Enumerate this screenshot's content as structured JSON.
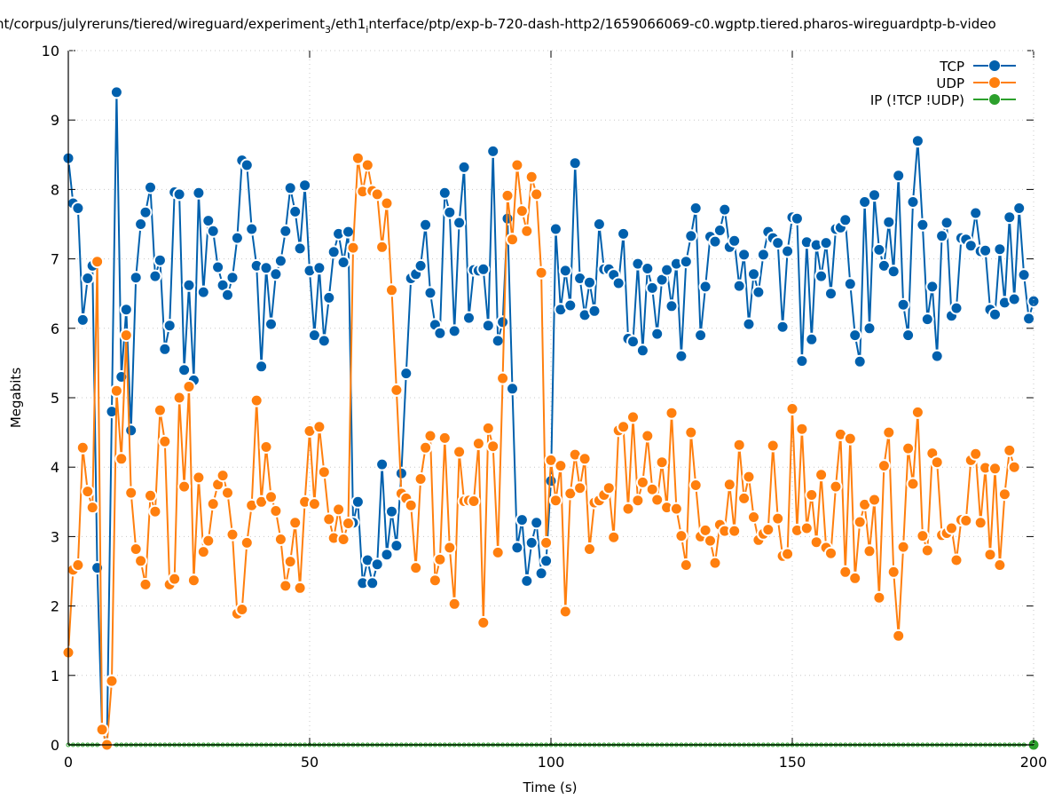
{
  "chart_data": {
    "type": "line",
    "title": "ht/corpus/julyreruns/tiered/wireguard/experiment",
    "title_sub1": "3",
    "title_mid": "/eth1",
    "title_sub2": "i",
    "title_end": "nterface/ptp/exp-b-720-dash-http2/1659066069-c0.wgptp.tiered.pharos-wireguardptp-b-video",
    "xlabel": "Time (s)",
    "ylabel": "Megabits",
    "xlim": [
      0,
      200
    ],
    "ylim": [
      0,
      10
    ],
    "xticks": [
      "0",
      "50",
      "100",
      "150",
      "200"
    ],
    "yticks": [
      "0",
      "1",
      "2",
      "3",
      "4",
      "5",
      "6",
      "7",
      "8",
      "9",
      "10"
    ],
    "grid": true,
    "legend_position": "top-right",
    "series": [
      {
        "name": "TCP",
        "color": "#0060ad",
        "values": [
          8.45,
          7.8,
          7.73,
          6.12,
          6.72,
          6.9,
          2.55,
          0.2,
          0.0,
          4.8,
          9.4,
          5.3,
          6.27,
          4.53,
          6.73,
          7.5,
          7.67,
          8.03,
          6.75,
          6.98,
          5.7,
          6.04,
          7.96,
          7.93,
          5.4,
          6.62,
          5.25,
          7.95,
          6.52,
          7.55,
          7.4,
          6.88,
          6.62,
          6.48,
          6.73,
          7.3,
          8.42,
          8.35,
          7.43,
          6.9,
          5.45,
          6.87,
          6.06,
          6.78,
          6.97,
          7.4,
          8.02,
          7.68,
          7.15,
          8.06,
          6.83,
          5.9,
          6.87,
          5.82,
          6.44,
          7.1,
          7.36,
          6.95,
          7.39,
          3.2,
          3.5,
          2.33,
          2.66,
          2.33,
          2.6,
          4.04,
          2.74,
          3.36,
          2.87,
          3.91,
          5.35,
          6.72,
          6.78,
          6.9,
          7.49,
          6.51,
          6.05,
          5.93,
          7.95,
          7.67,
          5.96,
          7.52,
          8.32,
          6.15,
          6.84,
          6.83,
          6.85,
          6.04,
          8.55,
          5.82,
          6.09,
          7.58,
          5.13,
          2.84,
          3.24,
          2.36,
          2.91,
          3.2,
          2.47,
          2.65,
          3.8,
          7.43,
          6.27,
          6.83,
          6.33,
          8.38,
          6.72,
          6.19,
          6.66,
          6.25,
          7.5,
          6.85,
          6.85,
          6.77,
          6.65,
          7.36,
          5.85,
          5.81,
          6.93,
          5.68,
          6.86,
          6.58,
          5.92,
          6.7,
          6.84,
          6.32,
          6.93,
          5.6,
          6.96,
          7.33,
          7.73,
          5.9,
          6.6,
          7.32,
          7.25,
          7.41,
          7.71,
          7.17,
          7.26,
          6.61,
          7.06,
          6.06,
          6.78,
          6.52,
          7.06,
          7.39,
          7.3,
          7.23,
          6.02,
          7.11,
          7.6,
          7.58,
          5.53,
          7.24,
          5.84,
          7.2,
          6.75,
          7.23,
          6.5,
          7.43,
          7.45,
          7.56,
          6.64,
          5.9,
          5.52,
          7.82,
          6.0,
          7.92,
          7.13,
          6.9,
          7.53,
          6.82,
          8.2,
          6.34,
          5.9,
          7.82,
          8.7,
          7.49,
          6.13,
          6.6,
          5.6,
          7.33,
          7.52,
          6.18,
          6.29,
          7.3,
          7.28,
          7.19,
          7.66,
          7.11,
          7.12,
          6.27,
          6.2,
          7.14,
          6.37,
          7.6,
          6.42,
          7.73,
          6.77,
          6.14,
          6.39
        ]
      },
      {
        "name": "UDP",
        "color": "#ff7f0e",
        "values": [
          1.33,
          2.52,
          2.59,
          4.28,
          3.65,
          3.42,
          6.96,
          0.22,
          0.0,
          0.92,
          5.1,
          4.12,
          5.9,
          3.63,
          2.82,
          2.65,
          2.31,
          3.59,
          3.36,
          4.82,
          4.37,
          2.31,
          2.39,
          5.0,
          3.72,
          5.16,
          2.37,
          3.85,
          2.78,
          2.94,
          3.47,
          3.75,
          3.88,
          3.63,
          3.03,
          1.89,
          1.95,
          2.91,
          3.45,
          4.96,
          3.5,
          4.29,
          3.57,
          3.37,
          2.96,
          2.29,
          2.64,
          3.2,
          2.26,
          3.5,
          4.52,
          3.47,
          4.58,
          3.93,
          3.25,
          2.98,
          3.39,
          2.96,
          3.19,
          7.16,
          8.45,
          7.97,
          8.35,
          7.98,
          7.93,
          7.17,
          7.8,
          6.55,
          5.11,
          3.62,
          3.55,
          3.45,
          2.55,
          3.83,
          4.28,
          4.45,
          2.37,
          2.67,
          4.42,
          2.84,
          2.03,
          4.22,
          3.51,
          3.52,
          3.51,
          4.34,
          1.76,
          4.56,
          4.3,
          2.77,
          5.28,
          7.91,
          7.28,
          8.35,
          7.69,
          7.4,
          8.18,
          7.93,
          6.8,
          2.91,
          4.1,
          3.52,
          4.02,
          1.92,
          3.62,
          4.18,
          3.7,
          4.12,
          2.82,
          3.49,
          3.52,
          3.6,
          3.7,
          2.99,
          4.53,
          4.58,
          3.4,
          4.72,
          3.52,
          3.78,
          4.45,
          3.68,
          3.53,
          4.07,
          3.42,
          4.78,
          3.4,
          3.01,
          2.59,
          4.5,
          3.74,
          3.0,
          3.09,
          2.94,
          2.62,
          3.17,
          3.08,
          3.75,
          3.08,
          4.32,
          3.55,
          3.86,
          3.28,
          2.95,
          3.04,
          3.1,
          4.31,
          3.26,
          2.72,
          2.75,
          4.84,
          3.09,
          4.55,
          3.12,
          3.6,
          2.92,
          3.89,
          2.84,
          2.76,
          3.72,
          4.47,
          2.49,
          4.41,
          2.4,
          3.21,
          3.46,
          2.79,
          3.53,
          2.12,
          4.02,
          4.5,
          2.49,
          1.57,
          2.85,
          4.27,
          3.76,
          4.79,
          3.01,
          2.8,
          4.2,
          4.07,
          3.02,
          3.05,
          3.12,
          2.66,
          3.24,
          3.23,
          4.1,
          4.19,
          3.2,
          3.99,
          2.74,
          3.98,
          2.59,
          3.61,
          4.24,
          4.0
        ]
      },
      {
        "name": "IP (!TCP  !UDP)",
        "color": "#2ca02c",
        "values": [
          0,
          0,
          0,
          0,
          0,
          0,
          0,
          0,
          0,
          0,
          0,
          0,
          0,
          0,
          0,
          0,
          0,
          0,
          0,
          0,
          0,
          0,
          0,
          0,
          0,
          0,
          0,
          0,
          0,
          0,
          0,
          0,
          0,
          0,
          0,
          0,
          0,
          0,
          0,
          0,
          0,
          0,
          0,
          0,
          0,
          0,
          0,
          0,
          0,
          0,
          0,
          0,
          0,
          0,
          0,
          0,
          0,
          0,
          0,
          0,
          0,
          0,
          0,
          0,
          0,
          0,
          0,
          0,
          0,
          0,
          0,
          0,
          0,
          0,
          0,
          0,
          0,
          0,
          0,
          0,
          0,
          0,
          0,
          0,
          0,
          0,
          0,
          0,
          0,
          0,
          0,
          0,
          0,
          0,
          0,
          0,
          0,
          0,
          0,
          0,
          0,
          0,
          0,
          0,
          0,
          0,
          0,
          0,
          0,
          0,
          0,
          0,
          0,
          0,
          0,
          0,
          0,
          0,
          0,
          0,
          0,
          0,
          0,
          0,
          0,
          0,
          0,
          0,
          0,
          0,
          0,
          0,
          0,
          0,
          0,
          0,
          0,
          0,
          0,
          0,
          0,
          0,
          0,
          0,
          0,
          0,
          0,
          0,
          0,
          0,
          0,
          0,
          0,
          0,
          0,
          0,
          0,
          0,
          0,
          0,
          0,
          0,
          0,
          0,
          0,
          0,
          0,
          0,
          0,
          0,
          0,
          0,
          0,
          0,
          0,
          0,
          0,
          0,
          0,
          0,
          0,
          0,
          0,
          0,
          0,
          0,
          0,
          0,
          0,
          0,
          0,
          0,
          0,
          0,
          0,
          0,
          0,
          0,
          0,
          0,
          0
        ]
      }
    ]
  }
}
